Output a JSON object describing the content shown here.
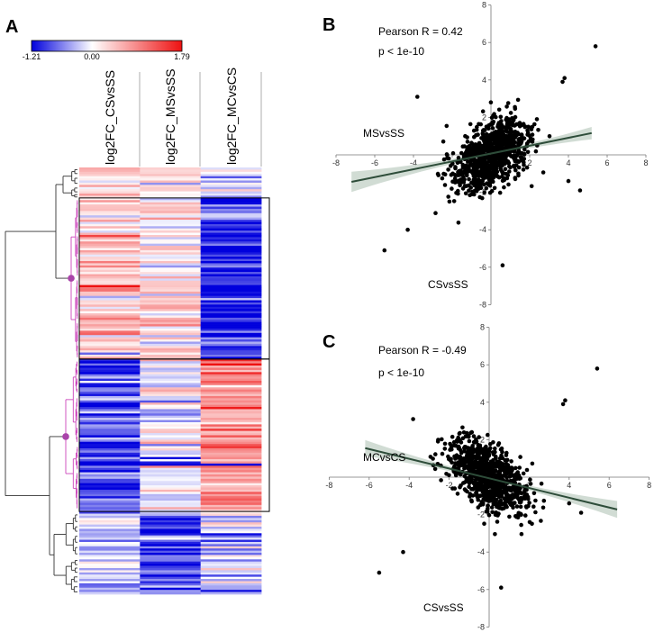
{
  "figure": {
    "panel_labels": [
      "A",
      "B",
      "C"
    ]
  },
  "colors": {
    "low": "#0000dd",
    "mid": "#ffffff",
    "high": "#ee1111",
    "dendro_black": "#333333",
    "dendro_pink": "#cc44bb",
    "node_dot": "#aa44aa",
    "fit_line": "#2e4d3a",
    "ci_band": "#c9d6cc",
    "points": "#000000"
  },
  "chart_data": [
    {
      "type": "heatmap",
      "colorbar": {
        "min": -1.21,
        "mid": 0.0,
        "max": 1.79,
        "min_label": "-1.21",
        "mid_label": "0.00",
        "max_label": "1.79"
      },
      "columns": [
        "log2FC_CSvsSS",
        "log2FC_MSvsSS",
        "log2FC_MCvsCS"
      ],
      "row_clusters": [
        {
          "rows": 14,
          "mean": [
            0.28,
            0.42,
            -0.22
          ],
          "boxed": false
        },
        {
          "rows": 74,
          "mean": [
            0.38,
            0.2,
            -0.95
          ],
          "boxed": true
        },
        {
          "rows": 70,
          "mean": [
            -0.85,
            -0.12,
            0.82
          ],
          "boxed": true
        },
        {
          "rows": 38,
          "mean": [
            -0.2,
            -0.82,
            -0.35
          ],
          "boxed": false
        }
      ],
      "dendrogram": {
        "highlighted_nodes": 2
      }
    },
    {
      "type": "scatter",
      "xlabel": "CSvsSS",
      "ylabel": "MSvsSS",
      "xlim": [
        -8,
        8
      ],
      "ylim": [
        -8,
        8
      ],
      "xticks": [
        -8,
        -6,
        -4,
        -2,
        2,
        4,
        6,
        8
      ],
      "yticks": [
        -8,
        -6,
        -4,
        -2,
        2,
        4,
        6,
        8
      ],
      "annotation_r": "Pearson R = 0.42",
      "annotation_p": "p < 1e-10",
      "fit": {
        "slope": 0.21,
        "intercept": 0.07,
        "x_range": [
          -7.2,
          5.2
        ]
      },
      "n_points": 900
    },
    {
      "type": "scatter",
      "xlabel": "CSvsSS",
      "ylabel": "MCvsCS",
      "xlim": [
        -8,
        8
      ],
      "ylim": [
        -8,
        8
      ],
      "xticks": [
        -8,
        -6,
        -4,
        -2,
        2,
        4,
        6,
        8
      ],
      "yticks": [
        -8,
        -6,
        -4,
        -2,
        2,
        4,
        6,
        8
      ],
      "annotation_r": "Pearson R = -0.49",
      "annotation_p": "p < 1e-10",
      "fit": {
        "slope": -0.26,
        "intercept": -0.06,
        "x_range": [
          -6.2,
          6.4
        ]
      },
      "n_points": 900
    }
  ]
}
